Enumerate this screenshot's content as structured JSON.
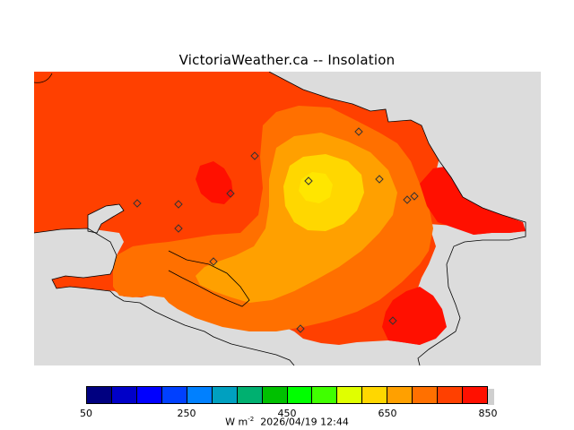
{
  "title": "VictoriaWeather.ca -- Insolation",
  "colorbar": {
    "colors": [
      "#000080",
      "#0000c8",
      "#0000ff",
      "#0040ff",
      "#0080ff",
      "#00a0c0",
      "#00b070",
      "#00c000",
      "#00ff00",
      "#40ff00",
      "#e0ff00",
      "#ffd700",
      "#ffa000",
      "#ff7000",
      "#ff4000",
      "#ff1000"
    ],
    "ticks": [
      "50",
      "250",
      "450",
      "650",
      "850"
    ]
  },
  "units_label": "W m",
  "units_exp": "-2",
  "timestamp": "2026/04/19 12:44",
  "colors": {
    "land_background": "#dcdcdc",
    "band_600": "#ff4000",
    "band_650": "#ff7000",
    "band_700": "#ffa000",
    "band_750": "#ffd700",
    "band_800": "#ff1000"
  },
  "station_marker": "diamond-icon"
}
